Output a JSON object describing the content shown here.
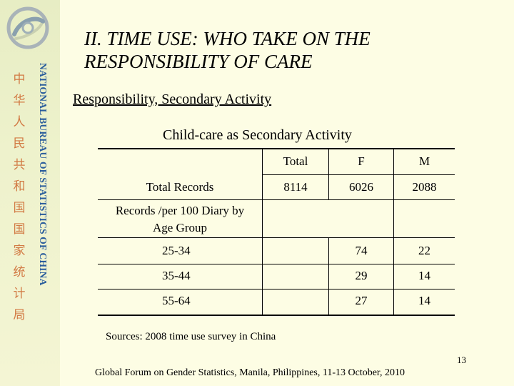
{
  "sidebar": {
    "chinese_chars": [
      "中",
      "华",
      "人",
      "民",
      "共",
      "和",
      "国",
      "国",
      "家",
      "统",
      "计",
      "局"
    ],
    "english_vertical": "NATIONAL BUREAU OF STATISTICS OF CHINA",
    "logo_icon": "nbs-logo-icon",
    "colors": {
      "chinese": "#d27a44",
      "english": "#2a5d9c"
    }
  },
  "slide": {
    "title": "II. TIME USE: WHO TAKE ON THE RESPONSIBILITY OF CARE",
    "subtitle": "Responsibility, Secondary Activity",
    "table_title": "Child-care as Secondary Activity",
    "table": {
      "headers": [
        "Total",
        "F",
        "M"
      ],
      "total_records": {
        "label": "Total Records",
        "total": "8114",
        "f": "6026",
        "m": "2088"
      },
      "per100_label_line1": "Records /per 100 Diary by",
      "per100_label_line2": "Age Group",
      "rows": [
        {
          "age": "25-34",
          "f": "74",
          "m": "22"
        },
        {
          "age": "35-44",
          "f": "29",
          "m": "14"
        },
        {
          "age": "55-64",
          "f": "27",
          "m": "14"
        }
      ]
    },
    "sources": "Sources: 2008 time use survey in China",
    "page_number": "13",
    "footer": "Global Forum on Gender Statistics, Manila, Philippines,  11-13 October, 2010"
  }
}
